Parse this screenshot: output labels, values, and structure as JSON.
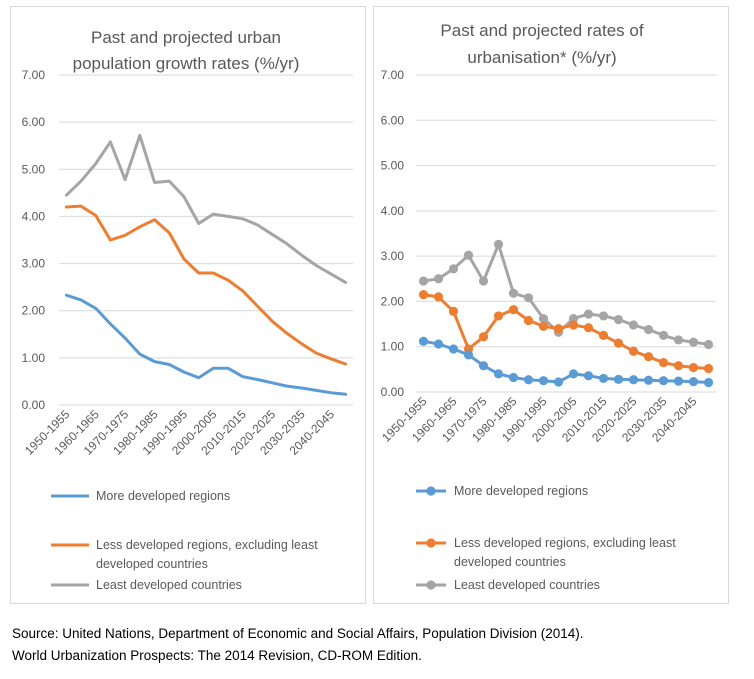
{
  "colors": {
    "more": "#5b9bd5",
    "less": "#ed7d31",
    "least": "#a5a5a5",
    "grid": "#d9d9d9"
  },
  "chart_data": [
    {
      "type": "line",
      "markers": false,
      "title_lines": [
        "Past and projected urban",
        "population growth rates (%/yr)"
      ],
      "ylim": [
        0,
        7
      ],
      "yticks": [
        "0.00",
        "1.00",
        "2.00",
        "3.00",
        "4.00",
        "5.00",
        "6.00",
        "7.00"
      ],
      "categories": [
        "1950-1955",
        "1955-1960",
        "1960-1965",
        "1965-1970",
        "1970-1975",
        "1975-1980",
        "1980-1985",
        "1985-1990",
        "1990-1995",
        "1995-2000",
        "2000-2005",
        "2005-2010",
        "2010-2015",
        "2015-2020",
        "2020-2025",
        "2025-2030",
        "2030-2035",
        "2035-2040",
        "2040-2045",
        "2045-2050"
      ],
      "xtick_labels": [
        "1950-1955",
        "1960-1965",
        "1970-1975",
        "1980-1985",
        "1990-1995",
        "2000-2005",
        "2010-2015",
        "2020-2025",
        "2030-2035",
        "2040-2045"
      ],
      "legend": [
        "More developed regions",
        "Less developed regions, excluding least developed countries",
        "Least developed countries"
      ],
      "legend_lines": [
        [
          "More developed regions"
        ],
        [
          "Less developed regions, excluding least",
          "developed countries"
        ],
        [
          "Least developed countries"
        ]
      ],
      "series": [
        {
          "name": "More developed regions",
          "color": "#5b9bd5",
          "values": [
            2.33,
            2.23,
            2.05,
            1.72,
            1.42,
            1.08,
            0.92,
            0.86,
            0.7,
            0.58,
            0.78,
            0.78,
            0.6,
            0.54,
            0.47,
            0.4,
            0.36,
            0.31,
            0.26,
            0.23
          ]
        },
        {
          "name": "Less developed regions, excluding least developed countries",
          "color": "#ed7d31",
          "values": [
            4.2,
            4.22,
            4.02,
            3.5,
            3.6,
            3.78,
            3.93,
            3.65,
            3.1,
            2.8,
            2.8,
            2.65,
            2.42,
            2.1,
            1.78,
            1.52,
            1.3,
            1.1,
            0.98,
            0.87
          ]
        },
        {
          "name": "Least developed countries",
          "color": "#a5a5a5",
          "values": [
            4.45,
            4.75,
            5.12,
            5.58,
            4.78,
            5.72,
            4.72,
            4.75,
            4.42,
            3.85,
            4.05,
            4.0,
            3.95,
            3.82,
            3.62,
            3.42,
            3.18,
            2.96,
            2.78,
            2.6
          ]
        }
      ]
    },
    {
      "type": "line",
      "markers": true,
      "title_lines": [
        "Past and projected rates of",
        "urbanisation* (%/yr)"
      ],
      "ylim": [
        0,
        7
      ],
      "yticks": [
        "0.00",
        "1.00",
        "2.00",
        "3.00",
        "4.00",
        "5.00",
        "6.00",
        "7.00"
      ],
      "categories": [
        "1950-1955",
        "1955-1960",
        "1960-1965",
        "1965-1970",
        "1970-1975",
        "1975-1980",
        "1980-1985",
        "1985-1990",
        "1990-1995",
        "1995-2000",
        "2000-2005",
        "2005-2010",
        "2010-2015",
        "2015-2020",
        "2020-2025",
        "2025-2030",
        "2030-2035",
        "2035-2040",
        "2040-2045",
        "2045-2050"
      ],
      "xtick_labels": [
        "1950-1955",
        "1960-1965",
        "1970-1975",
        "1980-1985",
        "1990-1995",
        "2000-2005",
        "2010-2015",
        "2020-2025",
        "2030-2035",
        "2040-2045"
      ],
      "legend": [
        "More developed regions",
        "Less developed regions, excluding least developed countries",
        "Least developed countries"
      ],
      "legend_lines": [
        [
          "More developed regions"
        ],
        [
          "Less developed regions, excluding least",
          "developed countries"
        ],
        [
          "Least developed countries"
        ]
      ],
      "series": [
        {
          "name": "More developed regions",
          "color": "#5b9bd5",
          "values": [
            1.12,
            1.06,
            0.95,
            0.82,
            0.58,
            0.4,
            0.32,
            0.27,
            0.25,
            0.22,
            0.4,
            0.36,
            0.3,
            0.28,
            0.27,
            0.26,
            0.25,
            0.24,
            0.23,
            0.21
          ]
        },
        {
          "name": "Less developed regions, excluding least developed countries",
          "color": "#ed7d31",
          "values": [
            2.15,
            2.1,
            1.78,
            0.95,
            1.22,
            1.68,
            1.82,
            1.58,
            1.45,
            1.4,
            1.48,
            1.42,
            1.25,
            1.08,
            0.9,
            0.78,
            0.65,
            0.58,
            0.54,
            0.52
          ]
        },
        {
          "name": "Least developed countries",
          "color": "#a5a5a5",
          "values": [
            2.45,
            2.5,
            2.72,
            3.02,
            2.45,
            3.26,
            2.18,
            2.08,
            1.62,
            1.32,
            1.62,
            1.72,
            1.68,
            1.6,
            1.48,
            1.38,
            1.25,
            1.15,
            1.1,
            1.05
          ]
        }
      ]
    }
  ],
  "source": {
    "line1": "Source: United Nations, Department of Economic and Social Affairs, Population Division (2014).",
    "line2": "World Urbanization Prospects: The 2014 Revision, CD-ROM Edition."
  }
}
